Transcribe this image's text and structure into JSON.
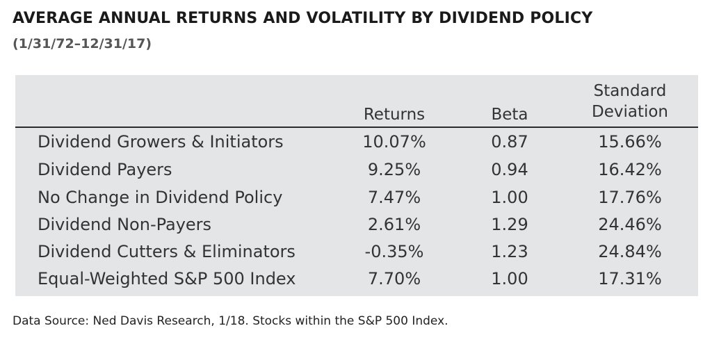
{
  "title": "AVERAGE ANNUAL RETURNS AND VOLATILITY BY DIVIDEND POLICY",
  "subtitle": "(1/31/72–12/31/17)",
  "table": {
    "headers": {
      "returns": "Returns",
      "beta": "Beta",
      "std_line1": "Standard",
      "std_line2": "Deviation"
    },
    "rows": [
      {
        "label": "Dividend Growers & Initiators",
        "returns": "10.07%",
        "beta": "0.87",
        "std": "15.66%"
      },
      {
        "label": "Dividend Payers",
        "returns": "9.25%",
        "beta": "0.94",
        "std": "16.42%"
      },
      {
        "label": "No Change in Dividend Policy",
        "returns": "7.47%",
        "beta": "1.00",
        "std": "17.76%"
      },
      {
        "label": "Dividend Non-Payers",
        "returns": "2.61%",
        "beta": "1.29",
        "std": "24.46%"
      },
      {
        "label": "Dividend Cutters & Eliminators",
        "returns": "-0.35%",
        "beta": "1.23",
        "std": "24.84%"
      },
      {
        "label": "Equal-Weighted S&P 500 Index",
        "returns": "7.70%",
        "beta": "1.00",
        "std": "17.31%"
      }
    ]
  },
  "footnote": "Data Source: Ned Davis Research, 1/18. Stocks within the S&P 500 Index.",
  "colors": {
    "panel_background": "#e4e5e7",
    "header_rule": "#2a2a2a",
    "text": "#333333"
  }
}
